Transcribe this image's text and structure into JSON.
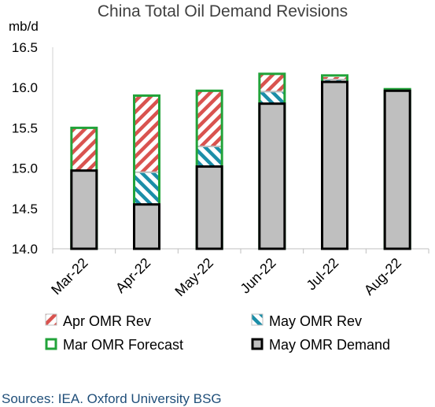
{
  "chart_data": {
    "type": "bar",
    "title": "China Total Oil Demand Revisions",
    "ylabel": "mb/d",
    "ylim": [
      14.0,
      16.5
    ],
    "yticks": [
      "14.0",
      "14.5",
      "15.0",
      "15.5",
      "16.0",
      "16.5"
    ],
    "categories": [
      "Mar-22",
      "Apr-22",
      "May-22",
      "Jun-22",
      "Jul-22",
      "Aug-22"
    ],
    "series": [
      {
        "name": "May OMR Demand",
        "values": [
          14.97,
          14.55,
          15.02,
          15.8,
          16.07,
          15.96
        ]
      },
      {
        "name": "May OMR Rev",
        "values": [
          null,
          14.95,
          15.27,
          15.95,
          16.1,
          null
        ]
      },
      {
        "name": "Apr OMR Rev",
        "values": [
          15.5,
          15.9,
          15.95,
          16.16,
          16.13,
          null
        ]
      },
      {
        "name": "Mar OMR Forecast",
        "values": [
          15.5,
          15.9,
          15.96,
          16.17,
          16.15,
          15.98
        ]
      }
    ],
    "legend": [
      {
        "name": "Apr OMR Rev",
        "style": "red-hatch"
      },
      {
        "name": "May OMR Rev",
        "style": "teal-hatch"
      },
      {
        "name": "Mar OMR Forecast",
        "style": "green-outline"
      },
      {
        "name": "May OMR Demand",
        "style": "grey-solid"
      }
    ],
    "legend_placement": "bottom",
    "grid": false,
    "colors": {
      "demand_fill": "#bfbfbf",
      "demand_border": "#000000",
      "apr_rev": "#d9534f",
      "may_rev": "#1b8ea8",
      "mar_forecast": "#22a33a"
    }
  },
  "source": "Sources: IEA. Oxford University BSG"
}
